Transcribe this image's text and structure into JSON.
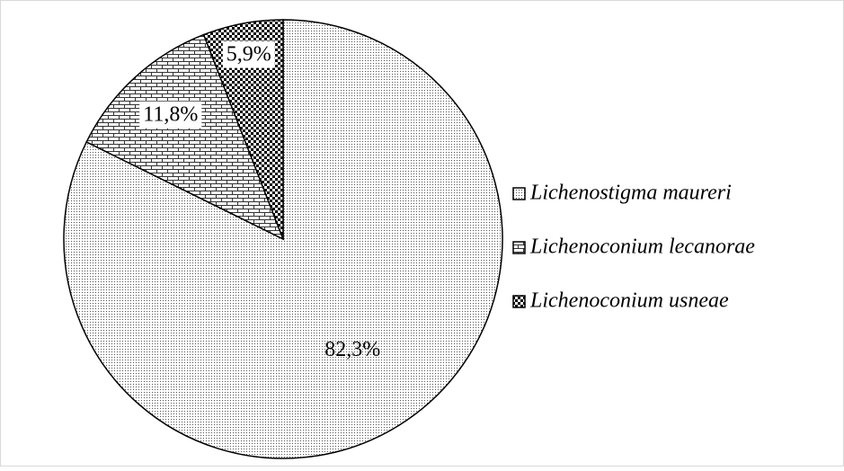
{
  "chart_data": {
    "type": "pie",
    "categories": [
      "Lichenostigma maureri",
      "Lichenoconium lecanorae",
      "Lichenoconium usneae"
    ],
    "values": [
      82.3,
      11.8,
      5.9
    ],
    "value_labels": [
      "82,3%",
      "11,8%",
      "5,9%"
    ],
    "fills": [
      "dots",
      "bricks",
      "checker"
    ],
    "legend": "right"
  }
}
